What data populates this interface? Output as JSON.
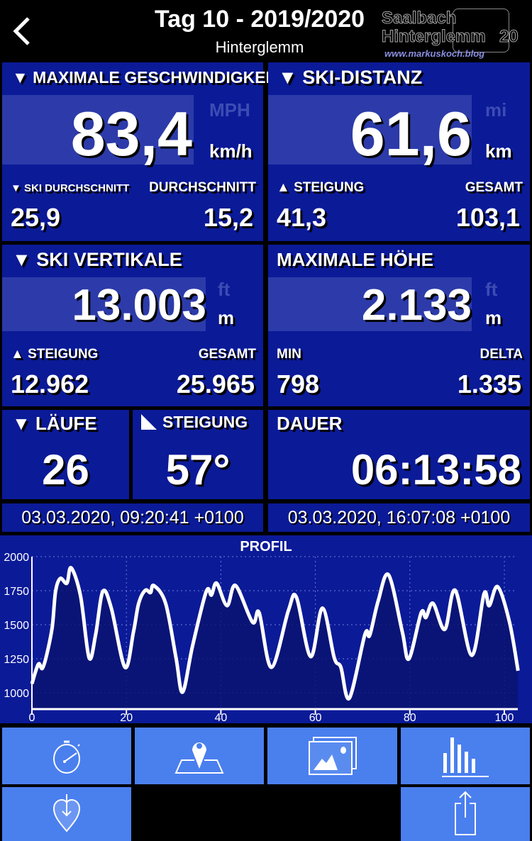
{
  "header": {
    "title": "Tag 10 - 2019/2020",
    "subtitle": "Hinterglemm",
    "back": "chevron-left-icon",
    "logo": {
      "line1": "Saalbach",
      "line2": "Hinterglemm",
      "year": "20",
      "url": "www.markuskoch.blog"
    }
  },
  "speed": {
    "label": "▼ MAXIMALE GESCHWINDIGKEIT",
    "value": "83,4",
    "unit_alt": "MPH",
    "unit": "km/h",
    "sub_left_label": "▼ SKI DURCHSCHNITT",
    "sub_right_label": "DURCHSCHNITT",
    "sub_left": "25,9",
    "sub_right": "15,2"
  },
  "distance": {
    "label": "▼ SKI-DISTANZ",
    "value": "61,6",
    "unit_alt": "mi",
    "unit": "km",
    "sub_left_label": "▲ STEIGUNG",
    "sub_right_label": "GESAMT",
    "sub_left": "41,3",
    "sub_right": "103,1"
  },
  "vertical": {
    "label": "▼ SKI VERTIKALE",
    "value": "13.003",
    "unit_alt": "ft",
    "unit": "m",
    "sub_left_label": "▲ STEIGUNG",
    "sub_right_label": "GESAMT",
    "sub_left": "12.962",
    "sub_right": "25.965"
  },
  "altitude": {
    "label": "MAXIMALE HÖHE",
    "value": "2.133",
    "unit_alt": "ft",
    "unit": "m",
    "sub_left_label": "MIN",
    "sub_right_label": "DELTA",
    "sub_left": "798",
    "sub_right": "1.335"
  },
  "runs": {
    "label": "▼ LÄUFE",
    "value": "26"
  },
  "slope": {
    "label": "STEIGUNG",
    "value": "57°"
  },
  "duration": {
    "label": "DAUER",
    "value": "06:13:58"
  },
  "start": "03.03.2020, 09:20:41 +0100",
  "end": "03.03.2020, 16:07:08 +0100",
  "chart_data": {
    "type": "area",
    "title": "PROFIL",
    "xlim": [
      0,
      103
    ],
    "ylim": [
      880,
      2000
    ],
    "grid": true,
    "xticks": [
      0,
      20,
      40,
      60,
      80,
      100
    ],
    "yticks": [
      1000,
      1250,
      1500,
      1750,
      2000
    ],
    "x": [
      0,
      0.9,
      1.5,
      2.2,
      3.1,
      4.3,
      5,
      6,
      7.4,
      8.3,
      10.3,
      12.1,
      13.5,
      15,
      16.8,
      19.7,
      21.5,
      22.6,
      24,
      25.1,
      25.8,
      28.3,
      30.5,
      31.9,
      34,
      36.9,
      38,
      39.1,
      41.3,
      43.1,
      46.7,
      48.1,
      50.7,
      54.3,
      56,
      59,
      61.5,
      64,
      65.4,
      67.2,
      70.5,
      71.5,
      73.3,
      75.5,
      78.4,
      79.8,
      82.4,
      83.4,
      84.9,
      87.4,
      89.6,
      93.1,
      95.7,
      96.8,
      98.6,
      101.1,
      102.9
    ],
    "y": [
      1066,
      1170,
      1214,
      1179,
      1275,
      1483,
      1744,
      1840,
      1805,
      1918,
      1710,
      1257,
      1430,
      1744,
      1622,
      1187,
      1448,
      1657,
      1753,
      1736,
      1788,
      1657,
      1257,
      1005,
      1344,
      1744,
      1718,
      1805,
      1640,
      1788,
      1518,
      1588,
      1187,
      1605,
      1701,
      1266,
      1622,
      1257,
      1187,
      961,
      1430,
      1422,
      1675,
      1866,
      1448,
      1249,
      1588,
      1553,
      1657,
      1466,
      1753,
      1275,
      1727,
      1640,
      1779,
      1518,
      1162
    ],
    "line_color": "#ffffff",
    "fill_color": "#0a1470",
    "bg_color": "#0b1a97"
  },
  "buttons": [
    {
      "icon": "stopwatch-icon"
    },
    {
      "icon": "map-pin-icon"
    },
    {
      "icon": "photos-icon"
    },
    {
      "icon": "bar-chart-icon"
    },
    {
      "icon": "heart-download-icon"
    },
    {
      "icon": "share-icon"
    }
  ],
  "colors": {
    "panel": "#0b1a97",
    "highlight": "#2c3ba9",
    "button": "#4a7fee"
  }
}
